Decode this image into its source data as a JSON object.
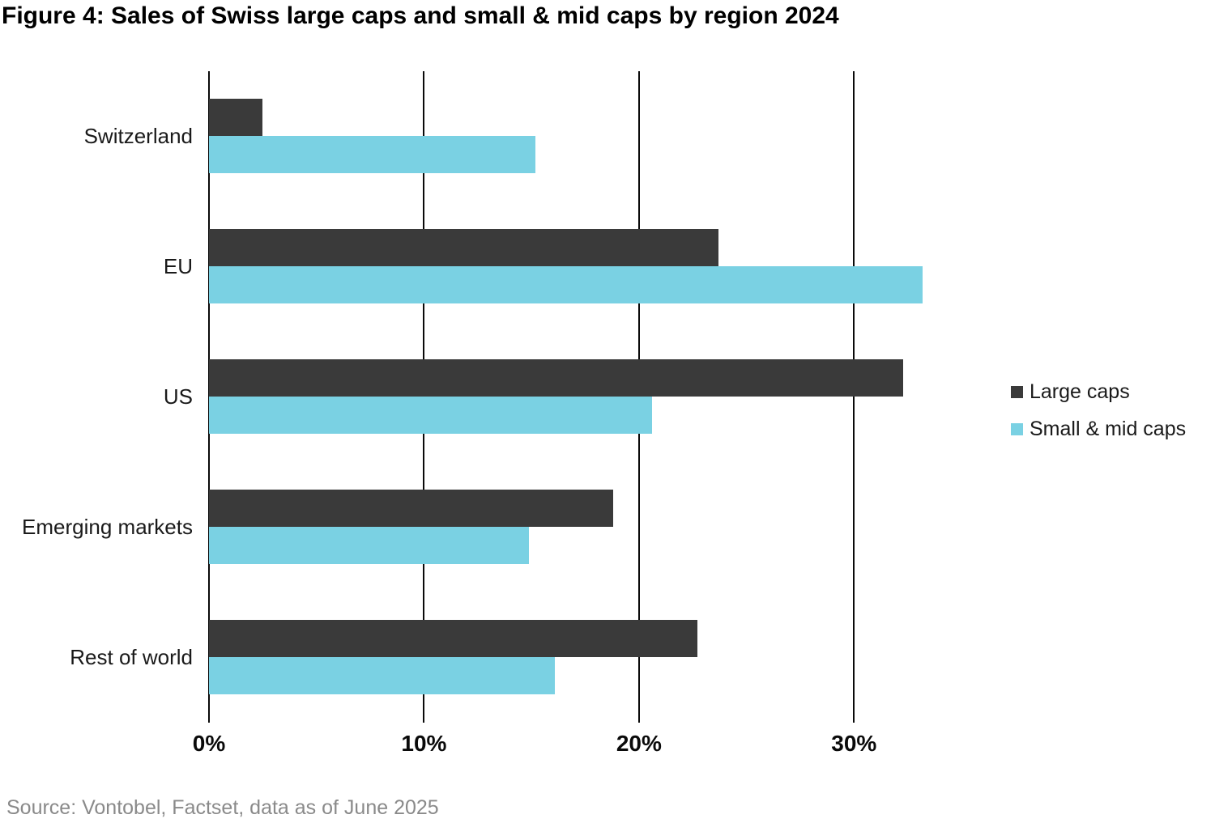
{
  "figure": {
    "title": "Figure 4: Sales of Swiss large caps and small & mid caps by region 2024",
    "source": "Source: Vontobel, Factset, data as of June 2025"
  },
  "colors": {
    "large_caps": "#3a3a3a",
    "small_mid_caps": "#7ad1e3",
    "gridline": "#0a0a0a",
    "source_text": "#8a8a8a"
  },
  "chart_data": {
    "type": "bar",
    "orientation": "horizontal",
    "title": "Figure 4: Sales of Swiss large caps and small & mid caps by region 2024",
    "categories": [
      "Switzerland",
      "EU",
      "US",
      "Emerging markets",
      "Rest of world"
    ],
    "series": [
      {
        "name": "Large caps",
        "color": "#3a3a3a",
        "values": [
          2.5,
          23.7,
          32.3,
          18.8,
          22.7
        ]
      },
      {
        "name": "Small & mid caps",
        "color": "#7ad1e3",
        "values": [
          15.2,
          33.2,
          20.6,
          14.9,
          16.1
        ]
      }
    ],
    "x_axis": {
      "tick_labels": [
        "0%",
        "10%",
        "20%",
        "30%"
      ],
      "tick_values": [
        0,
        10,
        20,
        30
      ],
      "min": 0,
      "max": 35,
      "unit": "%"
    },
    "ylabel": "",
    "xlabel": "",
    "grid": "vertical",
    "legend_position": "right"
  }
}
